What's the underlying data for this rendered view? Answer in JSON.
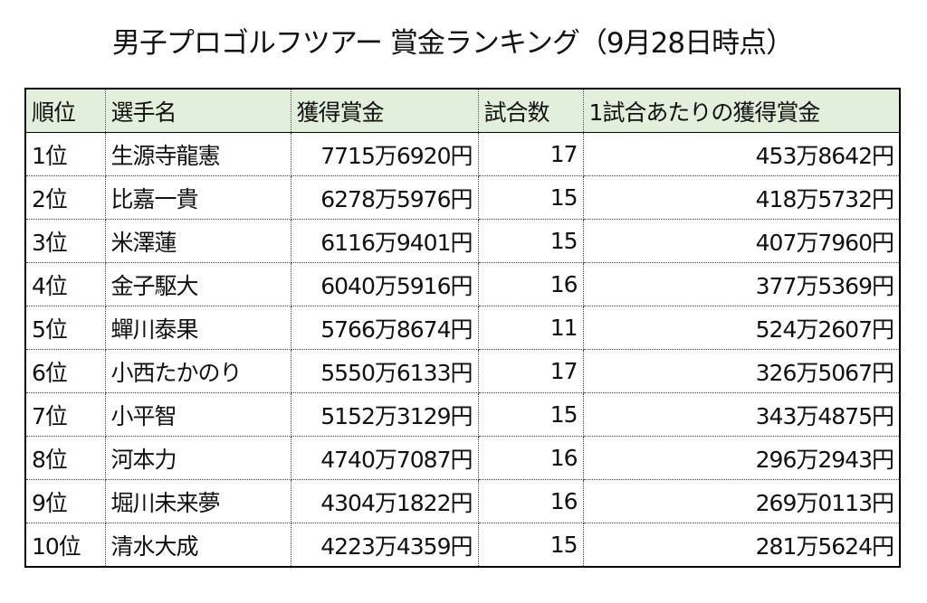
{
  "header": {
    "title": "男子プロゴルフツアー 賞金ランキング（9月28日時点）"
  },
  "table": {
    "columns": [
      "順位",
      "選手名",
      "獲得賞金",
      "試合数",
      "1試合あたりの獲得賞金"
    ],
    "rows": [
      [
        "1位",
        "生源寺龍憲",
        "7715万6920円",
        "17",
        "453万8642円"
      ],
      [
        "2位",
        "比嘉一貴",
        "6278万5976円",
        "15",
        "418万5732円"
      ],
      [
        "3位",
        "米澤蓮",
        "6116万9401円",
        "15",
        "407万7960円"
      ],
      [
        "4位",
        "金子駆大",
        "6040万5916円",
        "16",
        "377万5369円"
      ],
      [
        "5位",
        "蟬川泰果",
        "5766万8674円",
        "11",
        "524万2607円"
      ],
      [
        "6位",
        "小西たかのり",
        "5550万6133円",
        "17",
        "326万5067円"
      ],
      [
        "7位",
        "小平智",
        "5152万3129円",
        "15",
        "343万4875円"
      ],
      [
        "8位",
        "河本力",
        "4740万7087円",
        "16",
        "296万2943円"
      ],
      [
        "9位",
        "堀川未来夢",
        "4304万1822円",
        "16",
        "269万0113円"
      ],
      [
        "10位",
        "清水大成",
        "4223万4359円",
        "15",
        "281万5624円"
      ]
    ]
  }
}
